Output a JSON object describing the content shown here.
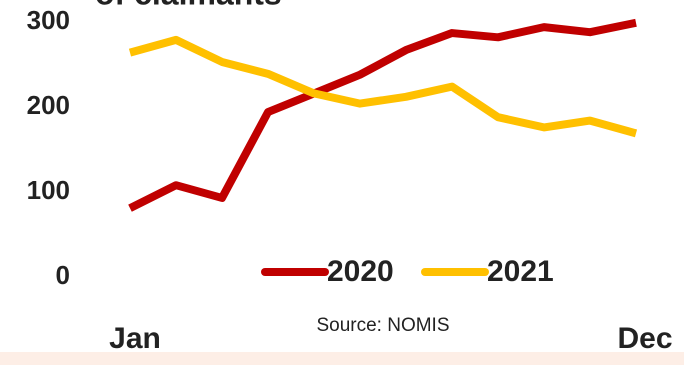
{
  "chart_data": {
    "type": "line",
    "title": "of claimants",
    "categories": [
      "Jan",
      null,
      null,
      null,
      null,
      null,
      null,
      null,
      null,
      null,
      null,
      "Dec"
    ],
    "series": [
      {
        "name": "2020",
        "color": "#c00000",
        "values": [
          81,
          108,
          93,
          194,
          216,
          238,
          267,
          287,
          282,
          294,
          288,
          299
        ]
      },
      {
        "name": "2021",
        "color": "#ffc000",
        "values": [
          264,
          279,
          253,
          239,
          216,
          204,
          212,
          224,
          188,
          176,
          184,
          169
        ]
      }
    ],
    "ylim": [
      0,
      300
    ],
    "yticks": [
      0,
      100,
      200,
      300
    ],
    "source": "Source: NOMIS"
  }
}
